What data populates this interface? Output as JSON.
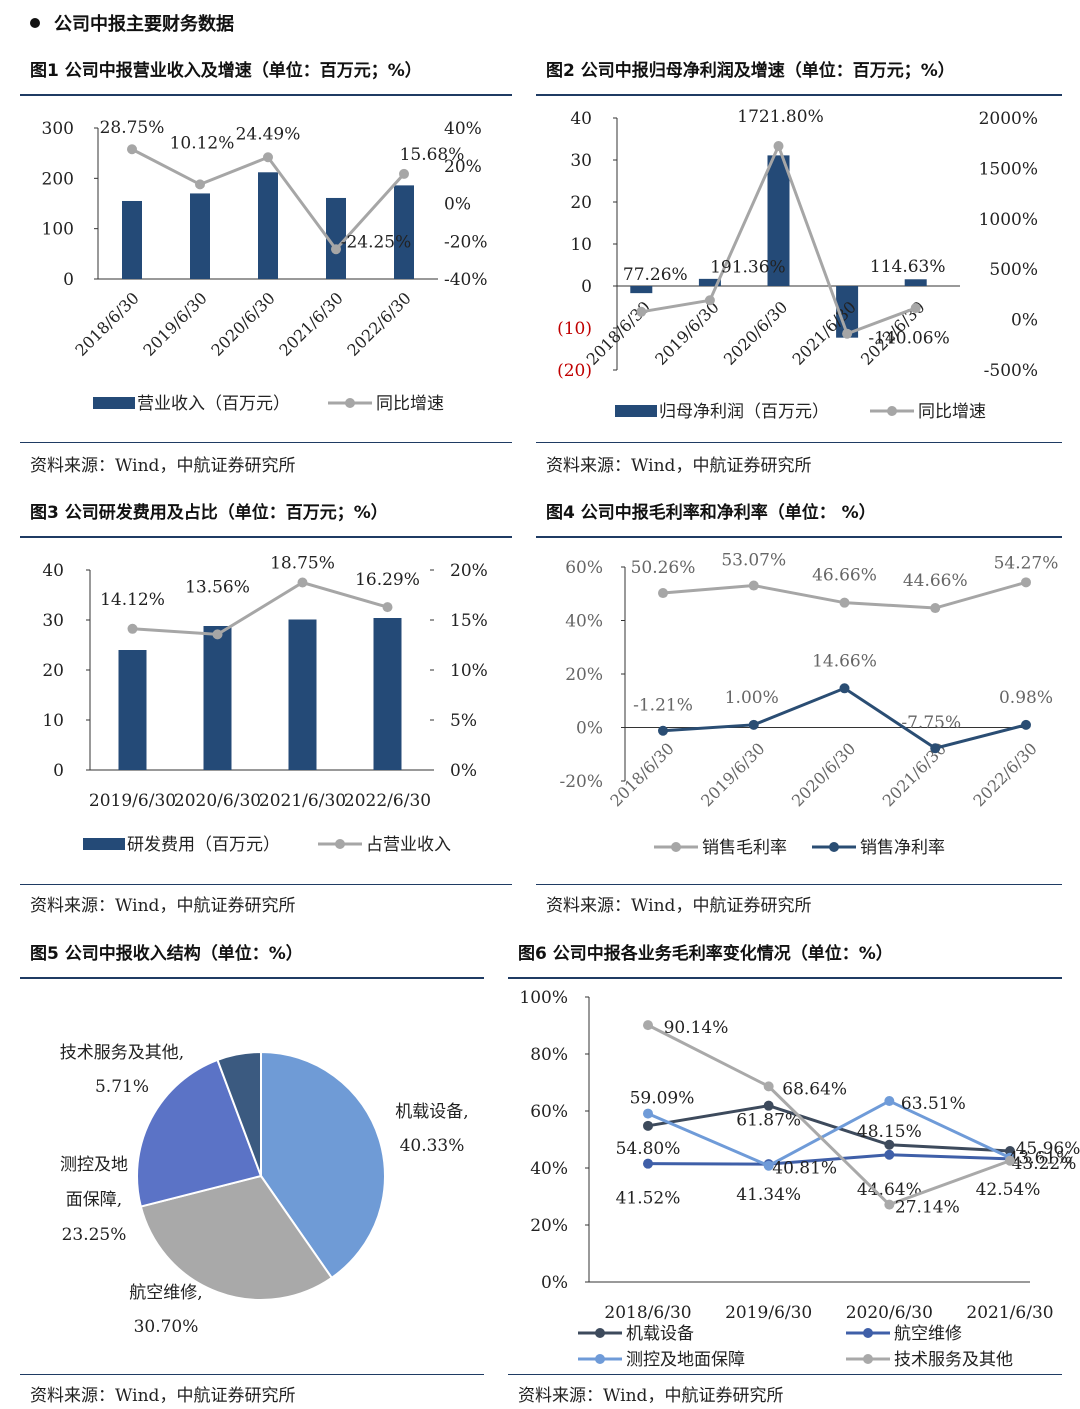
{
  "section_title": "公司中报主要财务数据",
  "colors": {
    "bar": "#244a77",
    "gray": "#a6a6a6",
    "navy": "#2a4d73",
    "dark": "#3d4a5c",
    "blue": "#3f5fa8",
    "light": "#6f9bd8",
    "lightgray": "#a9a9a9",
    "pieSlate": "#3b5a80",
    "pieMid": "#5b73c6"
  },
  "figures": {
    "fig1": {
      "title": "图1 公司中报营业收入及增速（单位：百万元；%）",
      "source": "资料来源：Wind，中航证券研究所"
    },
    "fig2": {
      "title": "图2 公司中报归母净利润及增速（单位：百万元；%）",
      "source": "资料来源：Wind，中航证券研究所"
    },
    "fig3": {
      "title": "图3 公司研发费用及占比（单位：百万元；%）",
      "source": "资料来源：Wind，中航证券研究所"
    },
    "fig4": {
      "title": "图4 公司中报毛利率和净利率（单位： %）",
      "source": "资料来源：Wind，中航证券研究所"
    },
    "fig5": {
      "title": "图5 公司中报收入结构（单位：%）",
      "source": "资料来源：Wind，中航证券研究所"
    },
    "fig6": {
      "title": "图6 公司中报各业务毛利率变化情况（单位：%）",
      "source": "资料来源：Wind，中航证券研究所"
    }
  },
  "chart_data": [
    {
      "id": "fig1",
      "type": "bar+line",
      "categories": [
        "2018/6/30",
        "2019/6/30",
        "2020/6/30",
        "2021/6/30",
        "2022/6/30"
      ],
      "series": [
        {
          "name": "营业收入（百万元）",
          "type": "bar",
          "axis": "left",
          "values": [
            155,
            170,
            212,
            161,
            186
          ]
        },
        {
          "name": "同比增速",
          "type": "line",
          "axis": "right",
          "values": [
            28.75,
            10.12,
            24.49,
            -24.25,
            15.68
          ],
          "labels": [
            "28.75%",
            "10.12%",
            "24.49%",
            "-24.25%",
            "15.68%"
          ]
        }
      ],
      "ylim_left": [
        0,
        300
      ],
      "yticks_left": [
        "0",
        "100",
        "200",
        "300"
      ],
      "ylim_right": [
        -40,
        40
      ],
      "yticks_right": [
        "-40%",
        "-20%",
        "0%",
        "20%",
        "40%"
      ],
      "legend": "bottom"
    },
    {
      "id": "fig2",
      "type": "bar+line",
      "categories": [
        "2018/6/30",
        "2019/6/30",
        "2020/6/30",
        "2021/6/30",
        "2022/6/30"
      ],
      "series": [
        {
          "name": "归母净利润（百万元）",
          "type": "bar",
          "axis": "left",
          "values": [
            -1.7,
            1.7,
            31.1,
            -12.3,
            1.6
          ]
        },
        {
          "name": "同比增速",
          "type": "line",
          "axis": "right",
          "values": [
            77.26,
            191.36,
            1721.8,
            -140.06,
            114.63
          ],
          "labels": [
            "77.26%",
            "191.36%",
            "1721.80%",
            "-140.06%",
            "114.63%"
          ]
        }
      ],
      "ylim_left": [
        -20,
        40
      ],
      "yticks_left": [
        "(20)",
        "(10)",
        "0",
        "10",
        "20",
        "30",
        "40"
      ],
      "ylim_right": [
        -500,
        2000
      ],
      "yticks_right": [
        "-500%",
        "0%",
        "500%",
        "1000%",
        "1500%",
        "2000%"
      ],
      "legend": "bottom"
    },
    {
      "id": "fig3",
      "type": "bar+line",
      "categories": [
        "2019/6/30",
        "2020/6/30",
        "2021/6/30",
        "2022/6/30"
      ],
      "series": [
        {
          "name": "研发费用（百万元）",
          "type": "bar",
          "axis": "left",
          "values": [
            24,
            28.8,
            30.1,
            30.4
          ]
        },
        {
          "name": "占营业收入",
          "type": "line",
          "axis": "right",
          "values": [
            14.12,
            13.56,
            18.75,
            16.29
          ],
          "labels": [
            "14.12%",
            "13.56%",
            "18.75%",
            "16.29%"
          ]
        }
      ],
      "ylim_left": [
        0,
        40
      ],
      "yticks_left": [
        "0",
        "10",
        "20",
        "30",
        "40"
      ],
      "ylim_right": [
        0,
        20
      ],
      "yticks_right": [
        "0%",
        "5%",
        "10%",
        "15%",
        "20%"
      ],
      "legend": "bottom"
    },
    {
      "id": "fig4",
      "type": "line",
      "categories": [
        "2018/6/30",
        "2019/6/30",
        "2020/6/30",
        "2021/6/30",
        "2022/6/30"
      ],
      "series": [
        {
          "name": "销售毛利率",
          "values": [
            50.26,
            53.07,
            46.66,
            44.66,
            54.27
          ],
          "labels": [
            "50.26%",
            "53.07%",
            "46.66%",
            "44.66%",
            "54.27%"
          ]
        },
        {
          "name": "销售净利率",
          "values": [
            -1.21,
            1.0,
            14.66,
            -7.75,
            0.98
          ],
          "labels": [
            "-1.21%",
            "1.00%",
            "14.66%",
            "-7.75%",
            "0.98%"
          ]
        }
      ],
      "ylim": [
        -20,
        60
      ],
      "yticks": [
        "-20%",
        "0%",
        "20%",
        "40%",
        "60%"
      ],
      "legend": "bottom"
    },
    {
      "id": "fig5",
      "type": "pie",
      "slices": [
        {
          "name": "机载设备",
          "value": 40.33,
          "label": "40.33%"
        },
        {
          "name": "航空维修",
          "value": 30.7,
          "label": "30.70%"
        },
        {
          "name": "测控及地面保障",
          "value": 23.25,
          "label": "23.25%"
        },
        {
          "name": "技术服务及其他",
          "value": 5.71,
          "label": "5.71%"
        }
      ],
      "slice_labels": {
        "s0": [
          "机载设备,",
          "40.33%"
        ],
        "s1": [
          "航空维修,",
          "30.70%"
        ],
        "s2": [
          "测控及地",
          "面保障,",
          "23.25%"
        ],
        "s3": [
          "技术服务及其他,",
          "5.71%"
        ]
      }
    },
    {
      "id": "fig6",
      "type": "line",
      "categories": [
        "2018/6/30",
        "2019/6/30",
        "2020/6/30",
        "2021/6/30"
      ],
      "series": [
        {
          "name": "机载设备",
          "values": [
            54.8,
            61.87,
            48.15,
            45.96
          ],
          "labels": [
            "54.80%",
            "61.87%",
            "48.15%",
            "45.96%"
          ]
        },
        {
          "name": "航空维修",
          "values": [
            41.52,
            41.34,
            44.64,
            43.22
          ],
          "labels": [
            "41.52%",
            "41.34%",
            "44.64%",
            "43.22%"
          ]
        },
        {
          "name": "测控及地面保障",
          "values": [
            59.09,
            40.81,
            63.51,
            43.61
          ],
          "labels": [
            "59.09%",
            "40.81%",
            "63.51%",
            "43.61%"
          ]
        },
        {
          "name": "技术服务及其他",
          "values": [
            90.14,
            68.64,
            27.14,
            42.54
          ],
          "labels": [
            "90.14%",
            "68.64%",
            "27.14%",
            "42.54%"
          ]
        }
      ],
      "ylim": [
        0,
        100
      ],
      "yticks": [
        "0%",
        "20%",
        "40%",
        "60%",
        "80%",
        "100%"
      ],
      "legend": "bottom"
    }
  ]
}
